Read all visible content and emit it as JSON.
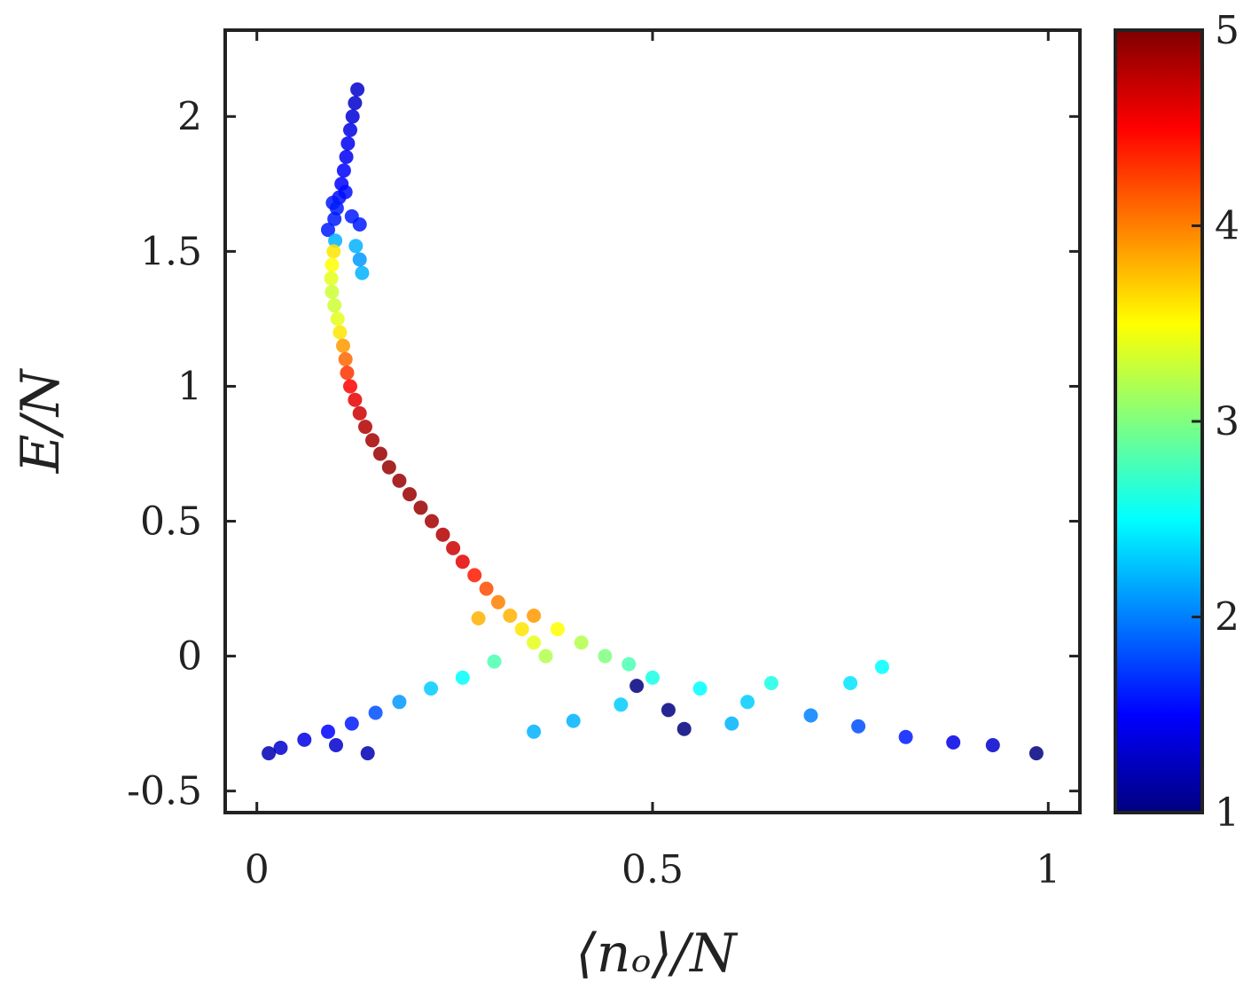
{
  "chart_data": {
    "type": "scatter",
    "xlabel": "⟨nₒ⟩/N",
    "ylabel": "E/N",
    "xlim": [
      -0.04,
      1.04
    ],
    "ylim": [
      -0.58,
      2.32
    ],
    "xticks": [
      {
        "value": 0,
        "label": "0"
      },
      {
        "value": 0.5,
        "label": "0.5"
      },
      {
        "value": 1,
        "label": "1"
      }
    ],
    "yticks": [
      {
        "value": -0.5,
        "label": "-0.5"
      },
      {
        "value": 0,
        "label": "0"
      },
      {
        "value": 0.5,
        "label": "0.5"
      },
      {
        "value": 1,
        "label": "1"
      },
      {
        "value": 1.5,
        "label": "1.5"
      },
      {
        "value": 2,
        "label": "2"
      }
    ],
    "grid": false,
    "colorbar": {
      "colormap": "jet",
      "range": [
        1,
        5
      ],
      "ticks": [
        {
          "value": 1,
          "label": "1"
        },
        {
          "value": 2,
          "label": "2"
        },
        {
          "value": 3,
          "label": "3"
        },
        {
          "value": 4,
          "label": "4"
        },
        {
          "value": 5,
          "label": "5"
        }
      ]
    },
    "points": [
      [
        0.127,
        2.1,
        1.3
      ],
      [
        0.124,
        2.05,
        1.3
      ],
      [
        0.121,
        2.0,
        1.35
      ],
      [
        0.118,
        1.95,
        1.4
      ],
      [
        0.115,
        1.9,
        1.45
      ],
      [
        0.113,
        1.85,
        1.45
      ],
      [
        0.11,
        1.8,
        1.5
      ],
      [
        0.107,
        1.75,
        1.5
      ],
      [
        0.104,
        1.7,
        1.55
      ],
      [
        0.101,
        1.66,
        1.6
      ],
      [
        0.098,
        1.62,
        1.6
      ],
      [
        0.09,
        1.58,
        1.6
      ],
      [
        0.12,
        1.63,
        1.6
      ],
      [
        0.13,
        1.6,
        1.6
      ],
      [
        0.112,
        1.72,
        1.55
      ],
      [
        0.096,
        1.68,
        1.6
      ],
      [
        0.099,
        1.54,
        2.2
      ],
      [
        0.125,
        1.52,
        2.2
      ],
      [
        0.133,
        1.42,
        2.2
      ],
      [
        0.13,
        1.47,
        2.1
      ],
      [
        0.097,
        1.5,
        3.6
      ],
      [
        0.095,
        1.45,
        3.5
      ],
      [
        0.094,
        1.4,
        3.4
      ],
      [
        0.095,
        1.35,
        3.3
      ],
      [
        0.098,
        1.3,
        3.3
      ],
      [
        0.102,
        1.25,
        3.4
      ],
      [
        0.105,
        1.2,
        3.6
      ],
      [
        0.109,
        1.15,
        3.9
      ],
      [
        0.112,
        1.1,
        4.1
      ],
      [
        0.114,
        1.05,
        4.3
      ],
      [
        0.118,
        1.0,
        4.5
      ],
      [
        0.124,
        0.95,
        4.6
      ],
      [
        0.13,
        0.9,
        4.7
      ],
      [
        0.137,
        0.85,
        4.8
      ],
      [
        0.146,
        0.8,
        4.85
      ],
      [
        0.156,
        0.75,
        4.9
      ],
      [
        0.167,
        0.7,
        4.9
      ],
      [
        0.18,
        0.65,
        4.9
      ],
      [
        0.193,
        0.6,
        4.9
      ],
      [
        0.207,
        0.55,
        4.9
      ],
      [
        0.221,
        0.5,
        4.85
      ],
      [
        0.235,
        0.45,
        4.8
      ],
      [
        0.248,
        0.4,
        4.7
      ],
      [
        0.26,
        0.35,
        4.6
      ],
      [
        0.275,
        0.3,
        4.4
      ],
      [
        0.29,
        0.25,
        4.2
      ],
      [
        0.305,
        0.2,
        4.0
      ],
      [
        0.32,
        0.15,
        3.8
      ],
      [
        0.335,
        0.1,
        3.6
      ],
      [
        0.35,
        0.05,
        3.4
      ],
      [
        0.365,
        0.0,
        3.2
      ],
      [
        0.28,
        0.14,
        3.8
      ],
      [
        0.35,
        0.15,
        3.9
      ],
      [
        0.38,
        0.1,
        3.5
      ],
      [
        0.41,
        0.05,
        3.2
      ],
      [
        0.44,
        0.0,
        3.0
      ],
      [
        0.47,
        -0.03,
        2.8
      ],
      [
        0.3,
        -0.02,
        2.8
      ],
      [
        0.26,
        -0.08,
        2.5
      ],
      [
        0.22,
        -0.12,
        2.3
      ],
      [
        0.18,
        -0.17,
        2.1
      ],
      [
        0.15,
        -0.21,
        1.8
      ],
      [
        0.12,
        -0.25,
        1.6
      ],
      [
        0.09,
        -0.28,
        1.5
      ],
      [
        0.06,
        -0.31,
        1.4
      ],
      [
        0.03,
        -0.34,
        1.3
      ],
      [
        0.015,
        -0.36,
        1.2
      ],
      [
        0.14,
        -0.36,
        1.2
      ],
      [
        0.1,
        -0.33,
        1.3
      ],
      [
        0.5,
        -0.08,
        2.6
      ],
      [
        0.56,
        -0.12,
        2.5
      ],
      [
        0.62,
        -0.17,
        2.3
      ],
      [
        0.7,
        -0.22,
        2.0
      ],
      [
        0.76,
        -0.26,
        1.8
      ],
      [
        0.82,
        -0.3,
        1.6
      ],
      [
        0.88,
        -0.32,
        1.4
      ],
      [
        0.93,
        -0.33,
        1.3
      ],
      [
        0.985,
        -0.36,
        1.0
      ],
      [
        0.48,
        -0.11,
        1.0
      ],
      [
        0.52,
        -0.2,
        1.0
      ],
      [
        0.54,
        -0.27,
        1.0
      ],
      [
        0.46,
        -0.18,
        2.3
      ],
      [
        0.4,
        -0.24,
        2.2
      ],
      [
        0.35,
        -0.28,
        2.2
      ],
      [
        0.79,
        -0.04,
        2.5
      ],
      [
        0.75,
        -0.1,
        2.4
      ],
      [
        0.65,
        -0.1,
        2.6
      ],
      [
        0.6,
        -0.25,
        2.2
      ]
    ]
  }
}
